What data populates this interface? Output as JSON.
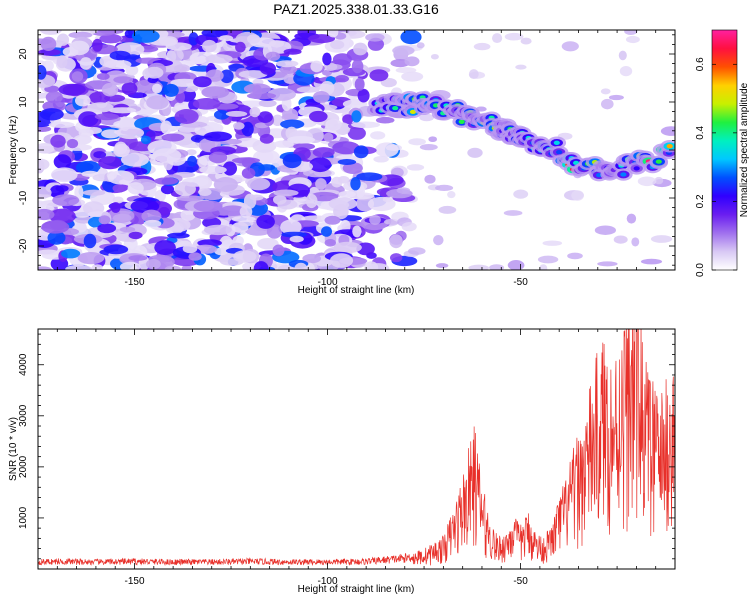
{
  "title": "PAZ1.2025.338.01.33.G16",
  "colors": {
    "snr_line": "#e8302a",
    "colormap": [
      "#ffffff",
      "#d8c8f4",
      "#a070ee",
      "#6a1ef0",
      "#3000ff",
      "#0050ff",
      "#00c8ff",
      "#00f0c0",
      "#20f040",
      "#c8f000",
      "#ffd000",
      "#ff5000",
      "#ff1040",
      "#ff20a0"
    ]
  },
  "chart_data": [
    {
      "type": "heatmap",
      "title": "PAZ1.2025.338.01.33.G16",
      "xlabel": "Height of straight line (km)",
      "ylabel": "Frequency (Hz)",
      "xlim": [
        -175,
        -10
      ],
      "ylim": [
        -25,
        25
      ],
      "xticks": [
        -150,
        -100,
        -50
      ],
      "yticks": [
        -20,
        -10,
        0,
        10,
        20
      ],
      "colorbar": {
        "label": "Normalized spectral amplitude",
        "range": [
          0.0,
          0.7
        ],
        "ticks": [
          0.0,
          0.2,
          0.4,
          0.6
        ],
        "tick_labels": [
          "0.0",
          "0.2",
          "0.4",
          "0.6"
        ]
      },
      "signal_ridge": [
        {
          "x": -88,
          "y": 8.5,
          "amp": 0.3
        },
        {
          "x": -80,
          "y": 9.5,
          "amp": 0.45
        },
        {
          "x": -76,
          "y": 9.3,
          "amp": 0.55
        },
        {
          "x": -71,
          "y": 9.0,
          "amp": 0.4
        },
        {
          "x": -65,
          "y": 7.0,
          "amp": 0.5
        },
        {
          "x": -58,
          "y": 5.5,
          "amp": 0.45
        },
        {
          "x": -53,
          "y": 4.2,
          "amp": 0.4
        },
        {
          "x": -49,
          "y": 2.5,
          "amp": 0.4
        },
        {
          "x": -42,
          "y": 1.0,
          "amp": 0.55
        },
        {
          "x": -35,
          "y": -3.5,
          "amp": 0.6
        },
        {
          "x": -26,
          "y": -4.0,
          "amp": 0.3
        },
        {
          "x": -18,
          "y": -2.5,
          "amp": 0.65
        },
        {
          "x": -10,
          "y": -0.5,
          "amp": 0.7
        }
      ]
    },
    {
      "type": "line",
      "xlabel": "Height of straight line (km)",
      "ylabel": "SNR (10 * v/v)",
      "xlim": [
        -175,
        -10
      ],
      "ylim": [
        0,
        4700
      ],
      "xticks": [
        -150,
        -100,
        -50
      ],
      "yticks": [
        1000,
        2000,
        3000,
        4000
      ],
      "series": [
        {
          "name": "SNR",
          "x": [
            -175,
            -170,
            -160,
            -150,
            -140,
            -130,
            -120,
            -110,
            -100,
            -90,
            -80,
            -75,
            -70,
            -67,
            -64,
            -62,
            -60,
            -58,
            -56,
            -54,
            -52,
            -50,
            -48,
            -46,
            -44,
            -42,
            -40,
            -38,
            -36,
            -34,
            -32,
            -30,
            -28,
            -26,
            -24,
            -22,
            -20,
            -18,
            -16,
            -14,
            -12,
            -10
          ],
          "values": [
            130,
            140,
            130,
            140,
            130,
            130,
            140,
            130,
            130,
            140,
            200,
            280,
            450,
            900,
            1500,
            2000,
            1200,
            700,
            450,
            500,
            750,
            600,
            800,
            500,
            450,
            600,
            1000,
            1300,
            1700,
            2000,
            2500,
            3000,
            3200,
            2800,
            3400,
            3500,
            4400,
            3000,
            2600,
            2400,
            2600,
            2800
          ]
        }
      ]
    }
  ]
}
